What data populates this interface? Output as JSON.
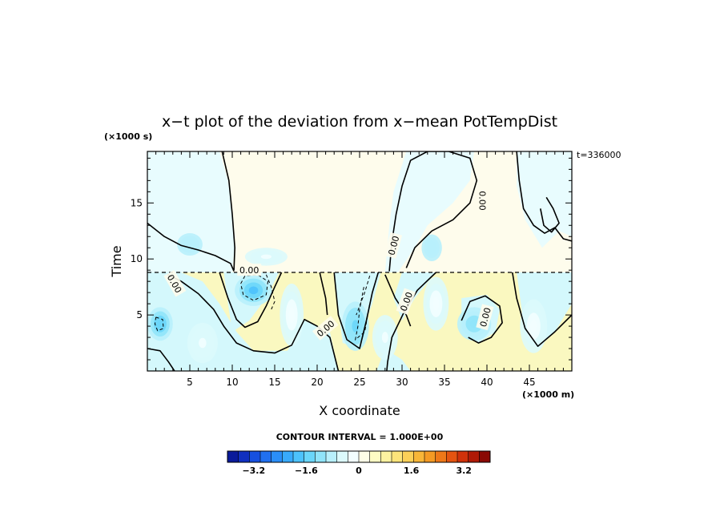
{
  "chart_data": {
    "type": "heatmap",
    "title": "x−t plot of the deviation from x−mean PotTempDist",
    "xlabel": "X coordinate",
    "ylabel": "Time",
    "x_unit_label": "(×1000 m)",
    "y_unit_label": "(×1000 s)",
    "time_label": "t=336000",
    "xlim": [
      0,
      50
    ],
    "ylim": [
      0,
      19.6
    ],
    "x_ticks": [
      5,
      10,
      15,
      20,
      25,
      30,
      35,
      40,
      45
    ],
    "y_ticks": [
      5,
      10,
      15
    ],
    "contour_interval_text": "CONTOUR INTERVAL = 1.000E+00",
    "contour_label": "0.00",
    "colorbar": {
      "min": -4.0,
      "max": 4.0,
      "step": 0.4,
      "tick_values": [
        -3.2,
        -1.6,
        0,
        1.6,
        3.2
      ],
      "tick_labels": [
        "−3.2",
        "−1.6",
        "0",
        "1.6",
        "3.2"
      ],
      "colors": [
        "#0a1a9a",
        "#1030c0",
        "#1650e0",
        "#2070f0",
        "#2a8ef8",
        "#38aafc",
        "#4cc2fc",
        "#6ad6fa",
        "#90e4fa",
        "#b8f0fc",
        "#dcfafc",
        "#f2feff",
        "#fefee8",
        "#fefcc4",
        "#fdf2a0",
        "#fce47a",
        "#fbd058",
        "#f8b638",
        "#f49a24",
        "#ee7818",
        "#e45410",
        "#d0320a",
        "#b01a06",
        "#8a0a04"
      ],
      "color_pos": "#faf8c0",
      "color_neg": "#d4f8fc",
      "color_bg_top": "#fefcec",
      "color_bg_top_neg": "#e8fcfe"
    },
    "anomalies": [
      {
        "x": 12.5,
        "t": 7.2,
        "value": -1.3,
        "rx": 2.2,
        "rt": 1.4
      },
      {
        "x": 1.5,
        "t": 4.2,
        "value": -1.1,
        "rx": 1.5,
        "rt": 1.5
      },
      {
        "x": 24.5,
        "t": 4.0,
        "value": -0.9,
        "rx": 1.6,
        "rt": 2.2
      },
      {
        "x": 38.5,
        "t": 4.2,
        "value": -0.8,
        "rx": 2.0,
        "rt": 1.5
      },
      {
        "x": 17.0,
        "t": 5.0,
        "value": 0.7,
        "rx": 1.4,
        "rt": 2.8
      },
      {
        "x": 34.0,
        "t": 6.0,
        "value": 0.6,
        "rx": 1.5,
        "rt": 2.4
      },
      {
        "x": 45.5,
        "t": 4.0,
        "value": 0.6,
        "rx": 1.6,
        "rt": 2.4
      },
      {
        "x": 28.0,
        "t": 3.0,
        "value": 0.5,
        "rx": 1.5,
        "rt": 2.0
      },
      {
        "x": 6.5,
        "t": 2.5,
        "value": 0.5,
        "rx": 1.8,
        "rt": 1.8
      },
      {
        "x": 14.0,
        "t": 10.2,
        "value": 0.4,
        "rx": 2.5,
        "rt": 0.8
      },
      {
        "x": 33.5,
        "t": 11.0,
        "value": -0.4,
        "rx": 1.2,
        "rt": 1.2
      },
      {
        "x": 5.0,
        "t": 11.3,
        "value": -0.4,
        "rx": 1.5,
        "rt": 1.0
      }
    ]
  }
}
